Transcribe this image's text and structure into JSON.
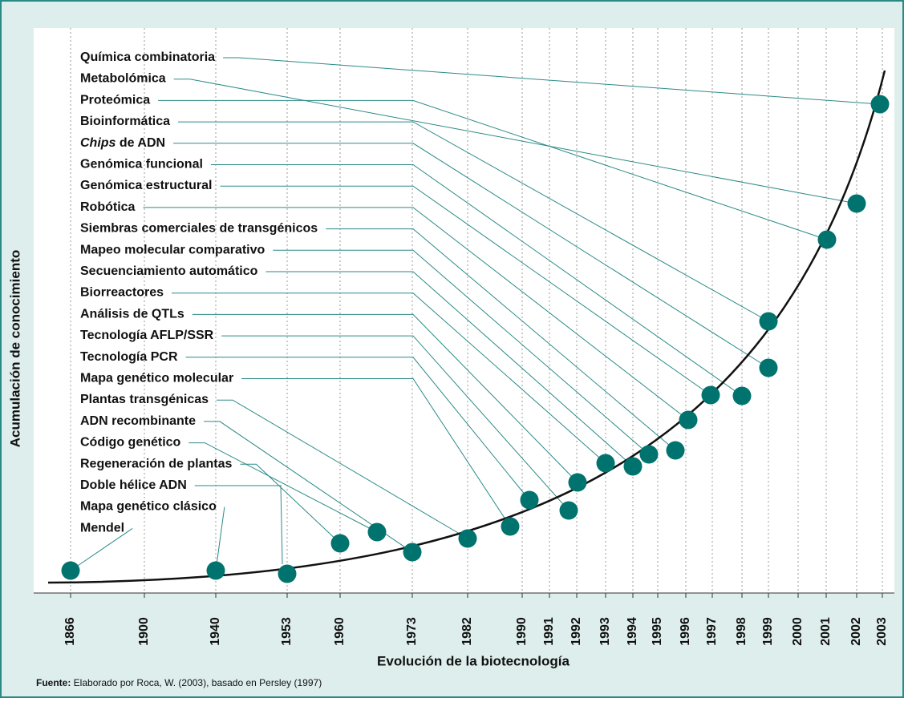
{
  "y_axis_label": "Acumulación de conocimiento",
  "x_axis_label": "Evolución de la biotecnología",
  "x_ticks": [
    "1866",
    "1900",
    "1940",
    "1953",
    "1960",
    "1973",
    "1982",
    "1990",
    "1991",
    "1992",
    "1993",
    "1994",
    "1995",
    "1996",
    "1997",
    "1998",
    "1999",
    "2000",
    "2001",
    "2002",
    "2003"
  ],
  "events": [
    {
      "label": "Química combinatoria"
    },
    {
      "label": "Metabolómica"
    },
    {
      "label": "Proteómica"
    },
    {
      "label": "Bioinformática"
    },
    {
      "italic": "Chips",
      "label": " de ADN"
    },
    {
      "label": "Genómica funcional"
    },
    {
      "label": "Genómica estructural"
    },
    {
      "label": "Robótica"
    },
    {
      "label": "Siembras comerciales de transgénicos"
    },
    {
      "label": "Mapeo molecular comparativo"
    },
    {
      "label": "Secuenciamiento automático"
    },
    {
      "label": "Biorreactores"
    },
    {
      "label": "Análisis de QTLs"
    },
    {
      "label": "Tecnología AFLP/SSR"
    },
    {
      "label": "Tecnología PCR"
    },
    {
      "label": "Mapa genético molecular"
    },
    {
      "label": "Plantas transgénicas"
    },
    {
      "label": "ADN recombinante"
    },
    {
      "label": "Código genético"
    },
    {
      "label": "Regeneración de plantas"
    },
    {
      "label": "Doble hélice ADN"
    },
    {
      "label": "Mapa genético clásico"
    },
    {
      "label": "Mendel"
    }
  ],
  "source": {
    "bold": "Fuente:",
    "text": " Elaborado por Roca, W. (2003), basado en Persley (1997)"
  }
}
